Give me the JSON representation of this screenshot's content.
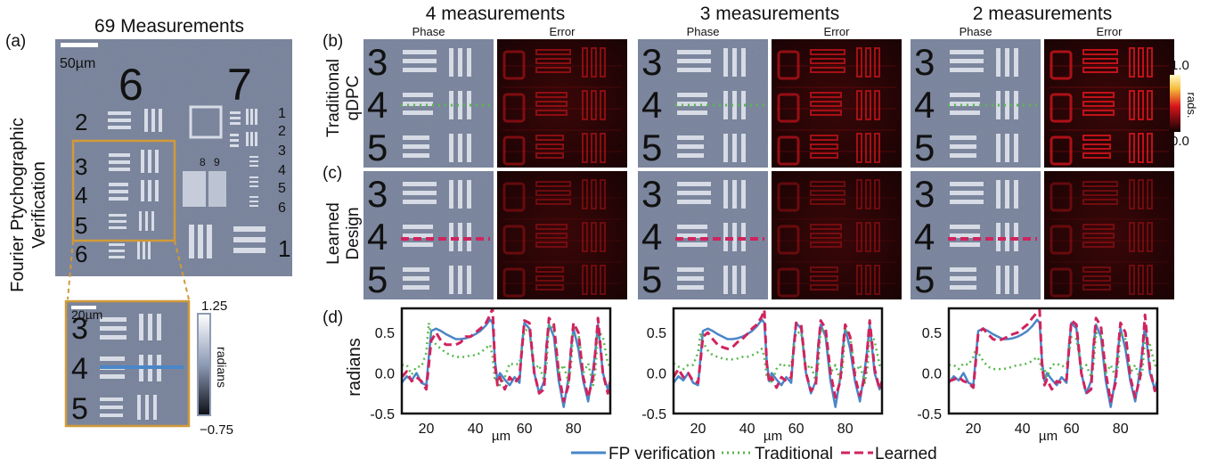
{
  "panels": {
    "a": "(a)",
    "b": "(b)",
    "c": "(c)",
    "d": "(d)"
  },
  "left": {
    "title": "69 Measurements",
    "side_label_line1": "Fourier Ptychographic",
    "side_label_line2": "Verification",
    "scalebar_main": "50µm",
    "scalebar_inset": "20µm",
    "colorbar_max": "1.25",
    "colorbar_label": "radians",
    "colorbar_min": "−0.75",
    "target_numbers": [
      "6",
      "7",
      "2",
      "3",
      "4",
      "5",
      "6",
      "1",
      "2",
      "3",
      "4",
      "5",
      "6",
      "8",
      "9",
      "1"
    ]
  },
  "grid": {
    "row_b_line1": "Traditional",
    "row_b_line2": "qDPC",
    "row_c_line1": "Learned",
    "row_c_line2": "Design",
    "phase_label": "Phase",
    "error_label": "Error",
    "groups": [
      {
        "title": "4 measurements"
      },
      {
        "title": "3 measurements"
      },
      {
        "title": "2 measurements"
      }
    ],
    "digits": [
      "3",
      "4",
      "5"
    ],
    "error_colorbar": {
      "max": "1.0",
      "label": "rads.",
      "min": "0.0"
    }
  },
  "colors": {
    "fp": "#4a86c8",
    "traditional": "#59b84f",
    "learned": "#d0245e",
    "error_red": "#d8151c",
    "phase_bg": "#7f8aa2",
    "frame_orange": "#d29a38"
  },
  "chart_data": [
    {
      "type": "line",
      "title": "4 measurements",
      "xlabel": "µm",
      "ylabel": "radians",
      "xlim": [
        10,
        95
      ],
      "ylim": [
        -0.5,
        0.8
      ],
      "xticks": [
        20,
        40,
        60,
        80
      ],
      "yticks": [
        0.5,
        0.0,
        -0.5
      ],
      "x": [
        10,
        12,
        14,
        16,
        18,
        20,
        21,
        22,
        24,
        26,
        28,
        30,
        32,
        34,
        36,
        38,
        40,
        42,
        44,
        46,
        47,
        48,
        49,
        50,
        52,
        54,
        56,
        58,
        59,
        60,
        62,
        64,
        66,
        68,
        69,
        70,
        72,
        74,
        76,
        78,
        79,
        80,
        82,
        84,
        86,
        88,
        89,
        90,
        92,
        94,
        95
      ],
      "series": [
        {
          "name": "FP verification",
          "values": [
            -0.12,
            -0.04,
            -0.09,
            0.0,
            -0.12,
            -0.15,
            0.2,
            0.52,
            0.55,
            0.52,
            0.48,
            0.45,
            0.42,
            0.42,
            0.43,
            0.45,
            0.48,
            0.52,
            0.58,
            0.66,
            0.62,
            0.15,
            -0.1,
            0.0,
            -0.08,
            -0.15,
            -0.05,
            -0.12,
            0.35,
            0.62,
            0.55,
            0.0,
            -0.25,
            -0.1,
            0.35,
            0.6,
            0.45,
            -0.1,
            -0.42,
            -0.05,
            0.3,
            0.55,
            0.3,
            -0.1,
            -0.35,
            0.05,
            0.3,
            0.6,
            0.0,
            -0.2,
            -0.1
          ]
        },
        {
          "name": "Traditional",
          "values": [
            0.1,
            0.1,
            -0.02,
            0.08,
            0.08,
            0.25,
            0.62,
            0.45,
            0.35,
            0.3,
            0.25,
            0.22,
            0.2,
            0.2,
            0.2,
            0.22,
            0.22,
            0.25,
            0.3,
            0.35,
            0.2,
            -0.1,
            -0.05,
            -0.15,
            -0.05,
            0.12,
            0.1,
            0.12,
            0.3,
            0.52,
            0.55,
            0.05,
            0.1,
            -0.1,
            0.1,
            0.6,
            0.55,
            0.0,
            0.1,
            -0.12,
            0.1,
            0.58,
            0.5,
            0.0,
            0.12,
            -0.15,
            0.05,
            0.52,
            0.45,
            0.12,
            0.08
          ]
        },
        {
          "name": "Learned",
          "values": [
            -0.05,
            0.02,
            -0.1,
            -0.05,
            -0.1,
            -0.2,
            0.1,
            0.4,
            0.5,
            0.4,
            0.35,
            0.35,
            0.35,
            0.38,
            0.45,
            0.45,
            0.5,
            0.55,
            0.6,
            0.72,
            0.8,
            0.1,
            -0.15,
            -0.05,
            -0.2,
            -0.05,
            -0.12,
            -0.05,
            0.3,
            0.65,
            0.62,
            0.0,
            -0.25,
            -0.2,
            0.3,
            0.68,
            0.6,
            0.0,
            -0.35,
            -0.15,
            0.3,
            0.62,
            0.5,
            -0.05,
            -0.3,
            -0.05,
            0.3,
            0.68,
            0.0,
            -0.25,
            -0.1
          ]
        }
      ]
    },
    {
      "type": "line",
      "title": "3 measurements",
      "xlabel": "µm",
      "ylabel": "radians",
      "xlim": [
        10,
        95
      ],
      "ylim": [
        -0.5,
        0.8
      ],
      "xticks": [
        20,
        40,
        60,
        80
      ],
      "yticks": [
        0.5,
        0.0,
        -0.5
      ],
      "x": [
        10,
        12,
        14,
        16,
        18,
        20,
        21,
        22,
        24,
        26,
        28,
        30,
        32,
        34,
        36,
        38,
        40,
        42,
        44,
        46,
        47,
        48,
        49,
        50,
        52,
        54,
        56,
        58,
        59,
        60,
        62,
        64,
        66,
        68,
        69,
        70,
        72,
        74,
        76,
        78,
        79,
        80,
        82,
        84,
        86,
        88,
        89,
        90,
        92,
        94,
        95
      ],
      "series": [
        {
          "name": "FP verification",
          "values": [
            -0.12,
            -0.04,
            -0.09,
            0.0,
            -0.12,
            -0.15,
            0.2,
            0.52,
            0.55,
            0.52,
            0.48,
            0.45,
            0.42,
            0.42,
            0.43,
            0.45,
            0.48,
            0.52,
            0.58,
            0.66,
            0.62,
            0.15,
            -0.1,
            0.0,
            -0.08,
            -0.15,
            -0.05,
            -0.12,
            0.35,
            0.62,
            0.55,
            0.0,
            -0.25,
            -0.1,
            0.35,
            0.6,
            0.45,
            -0.1,
            -0.42,
            -0.05,
            0.3,
            0.55,
            0.3,
            -0.1,
            -0.35,
            0.05,
            0.3,
            0.6,
            0.0,
            -0.2,
            -0.1
          ]
        },
        {
          "name": "Traditional",
          "values": [
            0.12,
            0.08,
            0.05,
            0.1,
            0.1,
            0.25,
            0.5,
            0.38,
            0.28,
            0.22,
            0.2,
            0.18,
            0.17,
            0.17,
            0.18,
            0.2,
            0.2,
            0.22,
            0.25,
            0.3,
            0.2,
            -0.05,
            0.0,
            -0.12,
            0.05,
            0.12,
            0.08,
            0.1,
            0.3,
            0.5,
            0.5,
            0.05,
            0.1,
            -0.1,
            0.1,
            0.55,
            0.5,
            0.0,
            0.1,
            -0.1,
            0.1,
            0.55,
            0.45,
            0.0,
            0.1,
            -0.12,
            0.05,
            0.5,
            0.4,
            0.1,
            0.08
          ]
        },
        {
          "name": "Learned",
          "values": [
            -0.05,
            0.05,
            -0.05,
            0.0,
            -0.1,
            -0.12,
            0.15,
            0.45,
            0.5,
            0.42,
            0.35,
            0.32,
            0.3,
            0.32,
            0.38,
            0.42,
            0.48,
            0.55,
            0.6,
            0.7,
            0.78,
            0.12,
            -0.12,
            -0.05,
            -0.18,
            -0.05,
            -0.1,
            -0.05,
            0.3,
            0.62,
            0.6,
            0.0,
            -0.22,
            -0.15,
            0.3,
            0.65,
            0.55,
            0.0,
            -0.3,
            -0.1,
            0.3,
            0.6,
            0.45,
            -0.05,
            -0.28,
            -0.05,
            0.3,
            0.65,
            0.05,
            -0.2,
            -0.1
          ]
        }
      ]
    },
    {
      "type": "line",
      "title": "2 measurements",
      "xlabel": "µm",
      "ylabel": "radians",
      "xlim": [
        10,
        95
      ],
      "ylim": [
        -0.5,
        0.8
      ],
      "xticks": [
        20,
        40,
        60,
        80
      ],
      "yticks": [
        0.5,
        0.0,
        -0.5
      ],
      "x": [
        10,
        12,
        14,
        16,
        18,
        20,
        21,
        22,
        24,
        26,
        28,
        30,
        32,
        34,
        36,
        38,
        40,
        42,
        44,
        46,
        47,
        48,
        49,
        50,
        52,
        54,
        56,
        58,
        59,
        60,
        62,
        64,
        66,
        68,
        69,
        70,
        72,
        74,
        76,
        78,
        79,
        80,
        82,
        84,
        86,
        88,
        89,
        90,
        92,
        94,
        95
      ],
      "series": [
        {
          "name": "FP verification",
          "values": [
            -0.12,
            -0.04,
            -0.09,
            0.0,
            -0.12,
            -0.15,
            0.2,
            0.52,
            0.55,
            0.52,
            0.48,
            0.45,
            0.42,
            0.42,
            0.43,
            0.45,
            0.48,
            0.52,
            0.58,
            0.66,
            0.62,
            0.15,
            -0.1,
            0.0,
            -0.08,
            -0.15,
            -0.05,
            -0.12,
            0.35,
            0.62,
            0.55,
            0.0,
            -0.25,
            -0.1,
            0.35,
            0.6,
            0.45,
            -0.1,
            -0.42,
            -0.05,
            0.3,
            0.55,
            0.3,
            -0.1,
            -0.35,
            0.05,
            0.3,
            0.6,
            0.0,
            -0.2,
            -0.1
          ]
        },
        {
          "name": "Traditional",
          "values": [
            0.1,
            0.1,
            0.05,
            0.12,
            0.1,
            0.2,
            0.3,
            0.25,
            0.15,
            0.08,
            0.05,
            0.05,
            0.05,
            0.06,
            0.08,
            0.1,
            0.1,
            0.12,
            0.15,
            0.2,
            0.15,
            0.0,
            0.05,
            -0.05,
            0.1,
            0.12,
            0.08,
            0.1,
            0.25,
            0.45,
            0.42,
            0.05,
            0.1,
            -0.05,
            0.1,
            0.5,
            0.45,
            0.0,
            0.1,
            -0.05,
            0.1,
            0.5,
            0.42,
            0.0,
            0.1,
            -0.08,
            0.05,
            0.45,
            0.35,
            0.1,
            0.08
          ]
        },
        {
          "name": "Learned",
          "values": [
            -0.1,
            -0.08,
            -0.05,
            -0.1,
            -0.12,
            -0.18,
            0.15,
            0.5,
            0.55,
            0.48,
            0.42,
            0.4,
            0.42,
            0.45,
            0.48,
            0.5,
            0.55,
            0.6,
            0.68,
            0.75,
            0.78,
            0.1,
            -0.15,
            -0.08,
            -0.2,
            -0.1,
            -0.12,
            -0.08,
            0.3,
            0.65,
            0.6,
            0.0,
            -0.25,
            -0.2,
            0.3,
            0.68,
            0.58,
            0.0,
            -0.35,
            -0.12,
            0.3,
            0.62,
            0.5,
            -0.05,
            -0.3,
            -0.05,
            0.3,
            0.72,
            0.05,
            -0.22,
            -0.1
          ]
        }
      ]
    }
  ],
  "legend": {
    "items": [
      {
        "label": "FP verification",
        "style": "solid"
      },
      {
        "label": "Traditional",
        "style": "dotted"
      },
      {
        "label": "Learned",
        "style": "dashed"
      }
    ]
  }
}
